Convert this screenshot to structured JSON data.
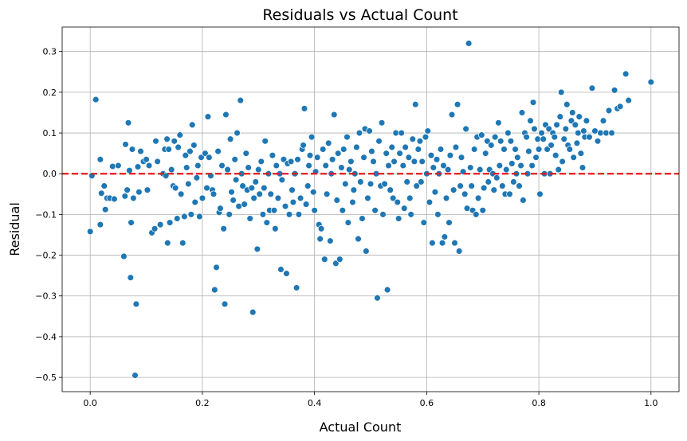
{
  "chart_data": {
    "type": "scatter",
    "title": "Residuals vs Actual Count",
    "xlabel": "Actual Count",
    "ylabel": "Residual",
    "xlim": [
      -0.05,
      1.05
    ],
    "ylim": [
      -0.535,
      0.36
    ],
    "xticks": [
      0.0,
      0.2,
      0.4,
      0.6,
      0.8,
      1.0
    ],
    "xtick_labels": [
      "0.0",
      "0.2",
      "0.4",
      "0.6",
      "0.8",
      "1.0"
    ],
    "yticks": [
      -0.5,
      -0.4,
      -0.3,
      -0.2,
      -0.1,
      0.0,
      0.1,
      0.2,
      0.3
    ],
    "ytick_labels": [
      "−0.5",
      "−0.4",
      "−0.3",
      "−0.2",
      "−0.1",
      "0.0",
      "0.1",
      "0.2",
      "0.3"
    ],
    "grid": true,
    "point_color": "#1f77b4",
    "reference_line": {
      "y": 0.0,
      "color": "#e31a1c",
      "style": "dashed"
    },
    "points": [
      [
        0.0,
        -0.142
      ],
      [
        0.003,
        -0.005
      ],
      [
        0.01,
        0.182
      ],
      [
        0.018,
        -0.125
      ],
      [
        0.018,
        0.035
      ],
      [
        0.02,
        -0.048
      ],
      [
        0.025,
        -0.03
      ],
      [
        0.027,
        -0.088
      ],
      [
        0.03,
        -0.06
      ],
      [
        0.035,
        -0.06
      ],
      [
        0.04,
        0.018
      ],
      [
        0.043,
        -0.062
      ],
      [
        0.05,
        0.02
      ],
      [
        0.06,
        -0.203
      ],
      [
        0.062,
        -0.055
      ],
      [
        0.063,
        0.072
      ],
      [
        0.066,
        -0.04
      ],
      [
        0.068,
        0.125
      ],
      [
        0.07,
        0.008
      ],
      [
        0.072,
        -0.255
      ],
      [
        0.073,
        -0.12
      ],
      [
        0.075,
        0.06
      ],
      [
        0.077,
        -0.06
      ],
      [
        0.08,
        -0.495
      ],
      [
        0.082,
        -0.32
      ],
      [
        0.085,
        0.017
      ],
      [
        0.087,
        -0.045
      ],
      [
        0.09,
        0.055
      ],
      [
        0.095,
        0.03
      ],
      [
        0.1,
        0.035
      ],
      [
        0.102,
        -0.04
      ],
      [
        0.105,
        0.02
      ],
      [
        0.11,
        -0.145
      ],
      [
        0.115,
        -0.135
      ],
      [
        0.117,
        0.08
      ],
      [
        0.12,
        0.03
      ],
      [
        0.125,
        -0.125
      ],
      [
        0.13,
        0.0
      ],
      [
        0.133,
        0.06
      ],
      [
        0.135,
        -0.005
      ],
      [
        0.137,
        0.085
      ],
      [
        0.138,
        -0.17
      ],
      [
        0.14,
        0.06
      ],
      [
        0.142,
        -0.12
      ],
      [
        0.145,
        0.01
      ],
      [
        0.148,
        -0.03
      ],
      [
        0.15,
        0.08
      ],
      [
        0.152,
        -0.035
      ],
      [
        0.155,
        -0.11
      ],
      [
        0.157,
        0.065
      ],
      [
        0.16,
        0.095
      ],
      [
        0.162,
        -0.05
      ],
      [
        0.165,
        -0.17
      ],
      [
        0.168,
        -0.105
      ],
      [
        0.17,
        0.045
      ],
      [
        0.172,
        0.015
      ],
      [
        0.175,
        -0.025
      ],
      [
        0.178,
        0.055
      ],
      [
        0.18,
        -0.1
      ],
      [
        0.182,
        0.12
      ],
      [
        0.185,
        0.07
      ],
      [
        0.187,
        -0.07
      ],
      [
        0.19,
        -0.01
      ],
      [
        0.192,
        0.02
      ],
      [
        0.195,
        -0.105
      ],
      [
        0.198,
        0.04
      ],
      [
        0.2,
        -0.06
      ],
      [
        0.205,
        0.05
      ],
      [
        0.208,
        -0.035
      ],
      [
        0.21,
        0.14
      ],
      [
        0.212,
        0.04
      ],
      [
        0.215,
        -0.005
      ],
      [
        0.218,
        -0.04
      ],
      [
        0.22,
        -0.05
      ],
      [
        0.222,
        -0.285
      ],
      [
        0.225,
        -0.23
      ],
      [
        0.228,
        0.055
      ],
      [
        0.23,
        -0.095
      ],
      [
        0.232,
        -0.085
      ],
      [
        0.235,
        0.02
      ],
      [
        0.238,
        -0.135
      ],
      [
        0.24,
        -0.32
      ],
      [
        0.242,
        0.145
      ],
      [
        0.245,
        0.01
      ],
      [
        0.248,
        -0.1
      ],
      [
        0.25,
        0.085
      ],
      [
        0.252,
        -0.045
      ],
      [
        0.255,
        -0.065
      ],
      [
        0.258,
        0.035
      ],
      [
        0.26,
        -0.015
      ],
      [
        0.262,
        0.1
      ],
      [
        0.265,
        -0.08
      ],
      [
        0.268,
        0.18
      ],
      [
        0.27,
        0.0
      ],
      [
        0.272,
        -0.03
      ],
      [
        0.275,
        -0.075
      ],
      [
        0.278,
        0.05
      ],
      [
        0.28,
        -0.04
      ],
      [
        0.282,
        0.015
      ],
      [
        0.285,
        -0.11
      ],
      [
        0.288,
        -0.035
      ],
      [
        0.29,
        -0.34
      ],
      [
        0.292,
        -0.06
      ],
      [
        0.295,
        -0.02
      ],
      [
        0.298,
        -0.185
      ],
      [
        0.3,
        0.01
      ],
      [
        0.302,
        -0.05
      ],
      [
        0.305,
        0.03
      ],
      [
        0.308,
        -0.1
      ],
      [
        0.31,
        -0.035
      ],
      [
        0.312,
        0.08
      ],
      [
        0.315,
        -0.12
      ],
      [
        0.318,
        0.0
      ],
      [
        0.32,
        -0.09
      ],
      [
        0.322,
        -0.05
      ],
      [
        0.325,
        0.045
      ],
      [
        0.328,
        -0.09
      ],
      [
        0.33,
        -0.135
      ],
      [
        0.332,
        0.02
      ],
      [
        0.335,
        -0.06
      ],
      [
        0.338,
        0.0
      ],
      [
        0.34,
        -0.235
      ],
      [
        0.342,
        -0.015
      ],
      [
        0.345,
        0.035
      ],
      [
        0.348,
        -0.08
      ],
      [
        0.35,
        -0.245
      ],
      [
        0.352,
        0.025
      ],
      [
        0.355,
        -0.1
      ],
      [
        0.358,
        0.03
      ],
      [
        0.36,
        -0.04
      ],
      [
        0.362,
        -0.07
      ],
      [
        0.365,
        0.0
      ],
      [
        0.368,
        -0.28
      ],
      [
        0.37,
        0.035
      ],
      [
        0.372,
        -0.1
      ],
      [
        0.375,
        -0.06
      ],
      [
        0.378,
        0.06
      ],
      [
        0.38,
        0.07
      ],
      [
        0.382,
        0.16
      ],
      [
        0.385,
        -0.075
      ],
      [
        0.388,
        -0.03
      ],
      [
        0.39,
        0.02
      ],
      [
        0.392,
        0.045
      ],
      [
        0.395,
        0.09
      ],
      [
        0.398,
        -0.045
      ],
      [
        0.4,
        -0.09
      ],
      [
        0.402,
        0.005
      ],
      [
        0.405,
        0.04
      ],
      [
        0.408,
        -0.125
      ],
      [
        0.41,
        -0.16
      ],
      [
        0.412,
        -0.135
      ],
      [
        0.415,
        0.06
      ],
      [
        0.418,
        -0.21
      ],
      [
        0.42,
        0.02
      ],
      [
        0.422,
        -0.05
      ],
      [
        0.425,
        0.075
      ],
      [
        0.428,
        -0.165
      ],
      [
        0.43,
        0.0
      ],
      [
        0.432,
        0.035
      ],
      [
        0.435,
        0.145
      ],
      [
        0.438,
        -0.22
      ],
      [
        0.44,
        -0.065
      ],
      [
        0.442,
        0.05
      ],
      [
        0.445,
        -0.21
      ],
      [
        0.448,
        0.015
      ],
      [
        0.45,
        -0.09
      ],
      [
        0.452,
        0.06
      ],
      [
        0.455,
        -0.025
      ],
      [
        0.458,
        0.09
      ],
      [
        0.46,
        -0.12
      ],
      [
        0.462,
        0.01
      ],
      [
        0.465,
        0.03
      ],
      [
        0.468,
        -0.07
      ],
      [
        0.47,
        -0.04
      ],
      [
        0.472,
        0.0
      ],
      [
        0.475,
        0.065
      ],
      [
        0.478,
        -0.16
      ],
      [
        0.48,
        0.1
      ],
      [
        0.482,
        -0.02
      ],
      [
        0.485,
        -0.11
      ],
      [
        0.488,
        0.04
      ],
      [
        0.49,
        0.11
      ],
      [
        0.492,
        -0.19
      ],
      [
        0.495,
        -0.06
      ],
      [
        0.498,
        0.105
      ],
      [
        0.5,
        -0.025
      ],
      [
        0.502,
        0.055
      ],
      [
        0.505,
        0.03
      ],
      [
        0.508,
        -0.09
      ],
      [
        0.51,
        0.0
      ],
      [
        0.512,
        -0.305
      ],
      [
        0.515,
        0.08
      ],
      [
        0.518,
        -0.03
      ],
      [
        0.52,
        0.125
      ],
      [
        0.522,
        -0.1
      ],
      [
        0.525,
        -0.025
      ],
      [
        0.528,
        0.05
      ],
      [
        0.53,
        -0.285
      ],
      [
        0.532,
        0.02
      ],
      [
        0.535,
        -0.04
      ],
      [
        0.538,
        0.065
      ],
      [
        0.54,
        -0.06
      ],
      [
        0.542,
        0.03
      ],
      [
        0.545,
        0.1
      ],
      [
        0.548,
        -0.07
      ],
      [
        0.55,
        -0.11
      ],
      [
        0.552,
        0.05
      ],
      [
        0.555,
        0.1
      ],
      [
        0.558,
        0.02
      ],
      [
        0.56,
        -0.085
      ],
      [
        0.562,
        0.065
      ],
      [
        0.565,
        -0.02
      ],
      [
        0.568,
        0.04
      ],
      [
        0.57,
        -0.06
      ],
      [
        0.572,
        -0.1
      ],
      [
        0.575,
        0.085
      ],
      [
        0.578,
        0.03
      ],
      [
        0.58,
        0.17
      ],
      [
        0.582,
        -0.03
      ],
      [
        0.585,
        0.06
      ],
      [
        0.588,
        0.08
      ],
      [
        0.59,
        -0.02
      ],
      [
        0.592,
        0.03
      ],
      [
        0.595,
        -0.12
      ],
      [
        0.598,
        0.09
      ],
      [
        0.6,
        0.0
      ],
      [
        0.602,
        0.105
      ],
      [
        0.605,
        -0.07
      ],
      [
        0.608,
        0.045
      ],
      [
        0.61,
        -0.17
      ],
      [
        0.612,
        0.015
      ],
      [
        0.615,
        -0.045
      ],
      [
        0.618,
        0.035
      ],
      [
        0.62,
        -0.1
      ],
      [
        0.622,
        0.0
      ],
      [
        0.625,
        0.06
      ],
      [
        0.628,
        -0.17
      ],
      [
        0.63,
        0.02
      ],
      [
        0.632,
        -0.155
      ],
      [
        0.635,
        -0.06
      ],
      [
        0.638,
        0.01
      ],
      [
        0.64,
        -0.12
      ],
      [
        0.642,
        0.045
      ],
      [
        0.645,
        0.145
      ],
      [
        0.648,
        -0.04
      ],
      [
        0.65,
        -0.17
      ],
      [
        0.652,
        0.065
      ],
      [
        0.655,
        0.17
      ],
      [
        0.658,
        -0.19
      ],
      [
        0.66,
        -0.03
      ],
      [
        0.662,
        0.04
      ],
      [
        0.665,
        0.005
      ],
      [
        0.668,
        -0.05
      ],
      [
        0.67,
        0.11
      ],
      [
        0.672,
        -0.085
      ],
      [
        0.675,
        0.32
      ],
      [
        0.678,
        0.015
      ],
      [
        0.68,
        -0.03
      ],
      [
        0.682,
        -0.09
      ],
      [
        0.685,
        0.06
      ],
      [
        0.688,
        -0.1
      ],
      [
        0.69,
        0.09
      ],
      [
        0.692,
        -0.06
      ],
      [
        0.695,
        0.01
      ],
      [
        0.698,
        0.095
      ],
      [
        0.7,
        -0.09
      ],
      [
        0.702,
        -0.035
      ],
      [
        0.705,
        0.05
      ],
      [
        0.708,
        0.08
      ],
      [
        0.71,
        -0.02
      ],
      [
        0.712,
        0.01
      ],
      [
        0.715,
        0.07
      ],
      [
        0.718,
        0.0
      ],
      [
        0.72,
        -0.04
      ],
      [
        0.722,
        0.09
      ],
      [
        0.725,
        -0.01
      ],
      [
        0.728,
        0.125
      ],
      [
        0.73,
        0.02
      ],
      [
        0.732,
        0.08
      ],
      [
        0.735,
        -0.03
      ],
      [
        0.738,
        0.06
      ],
      [
        0.74,
        -0.05
      ],
      [
        0.742,
        0.01
      ],
      [
        0.745,
        0.1
      ],
      [
        0.748,
        -0.05
      ],
      [
        0.75,
        0.08
      ],
      [
        0.752,
        0.025
      ],
      [
        0.755,
        -0.02
      ],
      [
        0.758,
        0.06
      ],
      [
        0.76,
        0.0
      ],
      [
        0.762,
        0.04
      ],
      [
        0.765,
        -0.03
      ],
      [
        0.768,
        0.02
      ],
      [
        0.77,
        0.15
      ],
      [
        0.772,
        -0.065
      ],
      [
        0.775,
        0.1
      ],
      [
        0.778,
        0.09
      ],
      [
        0.78,
        0.0
      ],
      [
        0.782,
        0.055
      ],
      [
        0.785,
        0.13
      ],
      [
        0.788,
        0.02
      ],
      [
        0.79,
        0.175
      ],
      [
        0.792,
        0.11
      ],
      [
        0.795,
        0.04
      ],
      [
        0.798,
        0.085
      ],
      [
        0.8,
        0.06
      ],
      [
        0.802,
        -0.05
      ],
      [
        0.805,
        0.1
      ],
      [
        0.808,
        0.085
      ],
      [
        0.81,
        0.0
      ],
      [
        0.812,
        0.12
      ],
      [
        0.815,
        0.06
      ],
      [
        0.818,
        0.11
      ],
      [
        0.82,
        0.0
      ],
      [
        0.822,
        0.07
      ],
      [
        0.825,
        0.1
      ],
      [
        0.828,
        0.09
      ],
      [
        0.83,
        0.045
      ],
      [
        0.832,
        0.12
      ],
      [
        0.835,
        0.01
      ],
      [
        0.838,
        0.14
      ],
      [
        0.84,
        0.2
      ],
      [
        0.842,
        0.03
      ],
      [
        0.845,
        0.085
      ],
      [
        0.848,
        0.11
      ],
      [
        0.85,
        0.17
      ],
      [
        0.852,
        0.07
      ],
      [
        0.855,
        0.06
      ],
      [
        0.858,
        0.13
      ],
      [
        0.86,
        0.15
      ],
      [
        0.862,
        0.04
      ],
      [
        0.865,
        0.12
      ],
      [
        0.868,
        0.075
      ],
      [
        0.87,
        0.1
      ],
      [
        0.872,
        0.14
      ],
      [
        0.875,
        0.05
      ],
      [
        0.878,
        0.015
      ],
      [
        0.88,
        0.105
      ],
      [
        0.882,
        0.09
      ],
      [
        0.885,
        0.13
      ],
      [
        0.89,
        0.09
      ],
      [
        0.895,
        0.21
      ],
      [
        0.9,
        0.105
      ],
      [
        0.905,
        0.08
      ],
      [
        0.91,
        0.1
      ],
      [
        0.915,
        0.13
      ],
      [
        0.92,
        0.1
      ],
      [
        0.925,
        0.155
      ],
      [
        0.93,
        0.1
      ],
      [
        0.935,
        0.205
      ],
      [
        0.94,
        0.16
      ],
      [
        0.945,
        0.165
      ],
      [
        0.955,
        0.245
      ],
      [
        0.96,
        0.18
      ],
      [
        1.0,
        0.225
      ]
    ]
  }
}
